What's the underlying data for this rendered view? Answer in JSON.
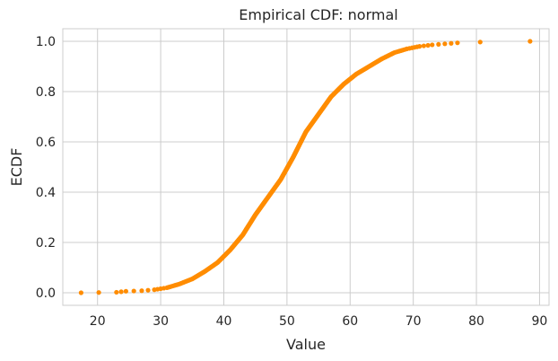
{
  "chart_data": {
    "type": "scatter",
    "title": "Empirical CDF: normal",
    "xlabel": "Value",
    "ylabel": "ECDF",
    "xlim": [
      14.5,
      91.5
    ],
    "ylim": [
      -0.05,
      1.05
    ],
    "xticks": [
      20,
      30,
      40,
      50,
      60,
      70,
      80,
      90
    ],
    "yticks": [
      0.0,
      0.2,
      0.4,
      0.6,
      0.8,
      1.0
    ],
    "xtick_labels": [
      "20",
      "30",
      "40",
      "50",
      "60",
      "70",
      "80",
      "90"
    ],
    "ytick_labels": [
      "0.0",
      "0.2",
      "0.4",
      "0.6",
      "0.8",
      "1.0"
    ],
    "grid": true,
    "marker_color": "#ff8c00",
    "curve": [
      [
        17.4,
        0.0
      ],
      [
        23.0,
        0.002
      ],
      [
        24.5,
        0.006
      ],
      [
        27.0,
        0.008
      ],
      [
        29.0,
        0.012
      ],
      [
        31.0,
        0.02
      ],
      [
        33.0,
        0.035
      ],
      [
        35.0,
        0.055
      ],
      [
        37.0,
        0.085
      ],
      [
        39.0,
        0.12
      ],
      [
        41.0,
        0.17
      ],
      [
        43.0,
        0.23
      ],
      [
        45.0,
        0.31
      ],
      [
        47.0,
        0.38
      ],
      [
        49.0,
        0.45
      ],
      [
        51.0,
        0.54
      ],
      [
        53.0,
        0.64
      ],
      [
        55.0,
        0.71
      ],
      [
        57.0,
        0.78
      ],
      [
        59.0,
        0.83
      ],
      [
        61.0,
        0.87
      ],
      [
        63.0,
        0.9
      ],
      [
        65.0,
        0.93
      ],
      [
        67.0,
        0.955
      ],
      [
        69.0,
        0.97
      ],
      [
        71.0,
        0.98
      ],
      [
        73.0,
        0.986
      ],
      [
        75.0,
        0.99
      ],
      [
        77.0,
        0.994
      ]
    ],
    "outliers": [
      [
        80.6,
        0.997
      ],
      [
        88.5,
        1.0
      ]
    ]
  }
}
